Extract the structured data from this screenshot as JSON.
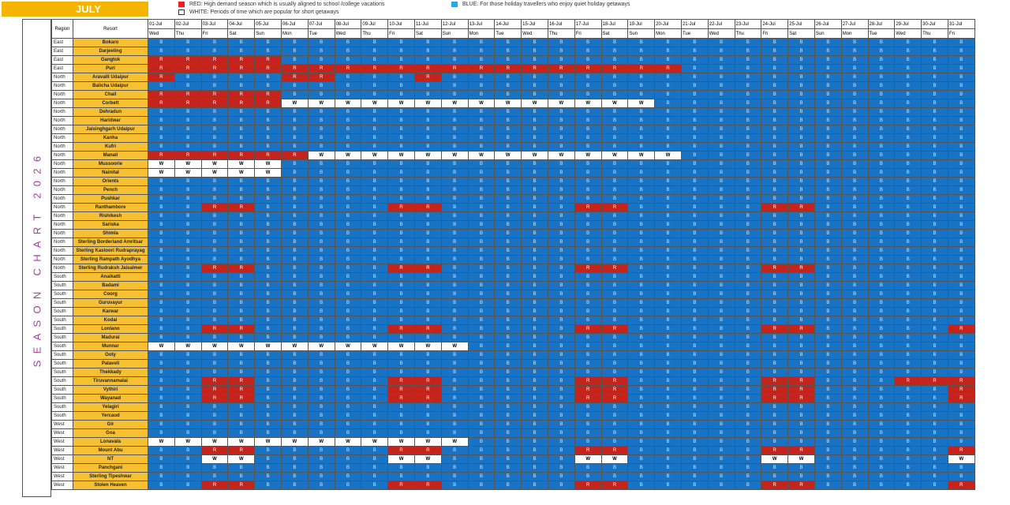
{
  "month_label": "JULY",
  "side_title": "SEASON CHART 2026",
  "legend": {
    "red": {
      "text": "RED: High demand season which is usually aligned to school /college vacations",
      "color": "#e32227"
    },
    "white": {
      "text": "WHITE: Periods of time which are popular for short getaways",
      "color": "#ffffff"
    },
    "blue": {
      "text": "BLUE: For those holiday travellers who enjoy quiet holiday getaways",
      "color": "#2aa6e0"
    }
  },
  "headers": {
    "region": "Region",
    "resort": "Resort"
  },
  "dates": [
    "01-Jul",
    "02-Jul",
    "03-Jul",
    "04-Jul",
    "05-Jul",
    "06-Jul",
    "07-Jul",
    "08-Jul",
    "09-Jul",
    "10-Jul",
    "11-Jul",
    "12-Jul",
    "13-Jul",
    "14-Jul",
    "15-Jul",
    "16-Jul",
    "17-Jul",
    "18-Jul",
    "19-Jul",
    "20-Jul",
    "21-Jul",
    "22-Jul",
    "23-Jul",
    "24-Jul",
    "25-Jul",
    "26-Jul",
    "27-Jul",
    "28-Jul",
    "29-Jul",
    "30-Jul",
    "31-Jul"
  ],
  "weekdays": [
    "Wed",
    "Thu",
    "Fri",
    "Sat",
    "Sun",
    "Mon",
    "Tue",
    "Wed",
    "Thu",
    "Fri",
    "Sat",
    "Sun",
    "Mon",
    "Tue",
    "Wed",
    "Thu",
    "Fri",
    "Sat",
    "Sun",
    "Mon",
    "Tue",
    "Wed",
    "Thu",
    "Fri",
    "Sat",
    "Sun",
    "Mon",
    "Tue",
    "Wed",
    "Thu",
    "Fri"
  ],
  "rows": [
    {
      "region": "East",
      "resort": "Bokaro",
      "codes": "BBBBBBBBBBBBBBBBBBBBBBBBBBBBBBB"
    },
    {
      "region": "East",
      "resort": "Darjeeling",
      "codes": "BBBBBBBBBBBBBBBBBBBBBBBBBBBBBBB"
    },
    {
      "region": "East",
      "resort": "Gangtok",
      "codes": "RRRRRBBBBBBBBBBBBBBBBBBBBBBBBBB"
    },
    {
      "region": "East",
      "resort": "Puri",
      "codes": "RRRRRRRRRRRRRRRRRRRRBBBBBBBBBBB"
    },
    {
      "region": "North",
      "resort": "Aravalli Udaipur",
      "codes": "RBBBBRRBBBRBBBBBBBBBBBBBBBBBBBB"
    },
    {
      "region": "North",
      "resort": "Balicha Udaipur",
      "codes": "BBBBBBBBBBBBBBBBBBBBBBBBBBBBBBB"
    },
    {
      "region": "North",
      "resort": "Chail",
      "codes": "RRRRRBBBBBBBBBBBBBBBBBBBBBBBBBB"
    },
    {
      "region": "North",
      "resort": "Corbett",
      "codes": "RRRRRWWWWWWWWWWWWWWBBBBBBBBBBBB"
    },
    {
      "region": "North",
      "resort": "Dehradun",
      "codes": "BBBBBBBBBBBBBBBBBBBBBBBBBBBBBBB"
    },
    {
      "region": "North",
      "resort": "Haridwar",
      "codes": "BBBBBBBBBBBBBBBBBBBBBBBBBBBBBBB"
    },
    {
      "region": "North",
      "resort": "Jaisinghgarh Udaipur",
      "codes": "BBBBBBBBBBBBBBBBBBBBBBBBBBBBBBB"
    },
    {
      "region": "North",
      "resort": "Kanha",
      "codes": "BBBBBBBBBBBBBBBBBBBBBBBBBBBBBBB"
    },
    {
      "region": "North",
      "resort": "Kufri",
      "codes": "BBBBBBBBBBBBBBBBBBBBBBBBBBBBBBB"
    },
    {
      "region": "North",
      "resort": "Manali",
      "codes": "RRRRRRWWWWWWWWWWWWWWBBBBBBBBBBB"
    },
    {
      "region": "North",
      "resort": "Mussoorie",
      "codes": "WWWWWBBBBBBBBBBBBBBBBBBBBBBBBBB"
    },
    {
      "region": "North",
      "resort": "Nainital",
      "codes": "WWWWWBBBBBBBBBBBBBBBBBBBBBBBBBB"
    },
    {
      "region": "North",
      "resort": "Orients",
      "codes": "BBBBBBBBBBBBBBBBBBBBBBBBBBBBBBB"
    },
    {
      "region": "North",
      "resort": "Pench",
      "codes": "BBBBBBBBBBBBBBBBBBBBBBBBBBBBBBB"
    },
    {
      "region": "North",
      "resort": "Pushkar",
      "codes": "BBBBBBBBBBBBBBBBBBBBBBBBBBBBBBB"
    },
    {
      "region": "North",
      "resort": "Ranthambore",
      "codes": "BBRRBBBBBRRBBBBBRRBBBBBRRBBBBBB"
    },
    {
      "region": "North",
      "resort": "Rishikesh",
      "codes": "BBBBBBBBBBBBBBBBBBBBBBBBBBBBBBB"
    },
    {
      "region": "North",
      "resort": "Sariska",
      "codes": "BBBBBBBBBBBBBBBBBBBBBBBBBBBBBBB"
    },
    {
      "region": "North",
      "resort": "Shimla",
      "codes": "BBBBBBBBBBBBBBBBBBBBBBBBBBBBBBB"
    },
    {
      "region": "North",
      "resort": "Sterling Borderland Amritsar",
      "codes": "BBBBBBBBBBBBBBBBBBBBBBBBBBBBBBB"
    },
    {
      "region": "North",
      "resort": "Sterling Kastoori Rudraprayag",
      "codes": "BBBBBBBBBBBBBBBBBBBBBBBBBBBBBBB"
    },
    {
      "region": "North",
      "resort": "Sterling Rampath Ayodhya",
      "codes": "BBBBBBBBBBBBBBBBBBBBBBBBBBBBBBB"
    },
    {
      "region": "North",
      "resort": "Sterling Rudraksh Jaisalmer",
      "codes": "BBRRBBBBBRRBBBBBRRBBBBBRRBBBBBB"
    },
    {
      "region": "South",
      "resort": "Anaikatti",
      "codes": "BBBBBBBBBBBBBBBBBBBBBBBBBBBBBBB"
    },
    {
      "region": "South",
      "resort": "Badami",
      "codes": "BBBBBBBBBBBBBBBBBBBBBBBBBBBBBBB"
    },
    {
      "region": "South",
      "resort": "Coorg",
      "codes": "BBBBBBBBBBBBBBBBBBBBBBBBBBBBBBB"
    },
    {
      "region": "South",
      "resort": "Guruvayur",
      "codes": "BBBBBBBBBBBBBBBBBBBBBBBBBBBBBBB"
    },
    {
      "region": "South",
      "resort": "Karwar",
      "codes": "BBBBBBBBBBBBBBBBBBBBBBBBBBBBBBB"
    },
    {
      "region": "South",
      "resort": "Kodai",
      "codes": "BBBBBBBBBBBBBBBBBBBBBBBBBBBBBBB"
    },
    {
      "region": "South",
      "resort": "Lonlano",
      "codes": "BBRRBBBBBRRBBBBBRRBBBBBRRBBBBBR"
    },
    {
      "region": "South",
      "resort": "Madurai",
      "codes": "BBBBBBBBBBBBBBBBBBBBBBBBBBBBBBB"
    },
    {
      "region": "South",
      "resort": "Munnar",
      "codes": "WWWWWWWWWWWWBBBBBBBBBBBBBBBBBBB"
    },
    {
      "region": "South",
      "resort": "Ooty",
      "codes": "BBBBBBBBBBBBBBBBBBBBBBBBBBBBBBB"
    },
    {
      "region": "South",
      "resort": "Palaveli",
      "codes": "BBBBBBBBBBBBBBBBBBBBBBBBBBBBBBB"
    },
    {
      "region": "South",
      "resort": "Thekkady",
      "codes": "BBBBBBBBBBBBBBBBBBBBBBBBBBBBBBB"
    },
    {
      "region": "South",
      "resort": "Tiruvannamalai",
      "codes": "BBRRBBBBBRRBBBBBRRBBBBBRRBBBRRR"
    },
    {
      "region": "South",
      "resort": "Vythiri",
      "codes": "BBRRBBBBBRRBBBBBRRBBBBBRRBBBBBR"
    },
    {
      "region": "South",
      "resort": "Wayanad",
      "codes": "BBRRBBBBBRRBBBBBRRBBBBBRRBBBBBR"
    },
    {
      "region": "South",
      "resort": "Yelagiri",
      "codes": "BBBBBBBBBBBBBBBBBBBBBBBBBBBBBBB"
    },
    {
      "region": "South",
      "resort": "Yercaud",
      "codes": "BBBBBBBBBBBBBBBBBBBBBBBBBBBBBBB"
    },
    {
      "region": "West",
      "resort": "Gir",
      "codes": "BBBBBBBBBBBBBBBBBBBBBBBBBBBBBBB"
    },
    {
      "region": "West",
      "resort": "Goa",
      "codes": "BBBBBBBBBBBBBBBBBBBBBBBBBBBBBBB"
    },
    {
      "region": "West",
      "resort": "Lonavala",
      "codes": "WWWWWWWWWWWWBBBBBBBBBBBBBBBBBBB"
    },
    {
      "region": "West",
      "resort": "Mount Abu",
      "codes": "BBRRBBBBBRRBBBBBRRBBBBBRRBBBBBR"
    },
    {
      "region": "West",
      "resort": "NT",
      "codes": "BBWWBBBBBWWBBBBBWWBBBBBWWBBBBBW"
    },
    {
      "region": "West",
      "resort": "Panchgani",
      "codes": "BBBBBBBBBBBBBBBBBBBBBBBBBBBBBBB"
    },
    {
      "region": "West",
      "resort": "Sterling Tipeshwar",
      "codes": "BBBBBBBBBBBBBBBBBBBBBBBBBBBBBBB"
    },
    {
      "region": "West",
      "resort": "Stolen Heaven",
      "codes": "BBRRBBBBBRRBBBBBRRBBBBBRRBBBBBR"
    }
  ]
}
